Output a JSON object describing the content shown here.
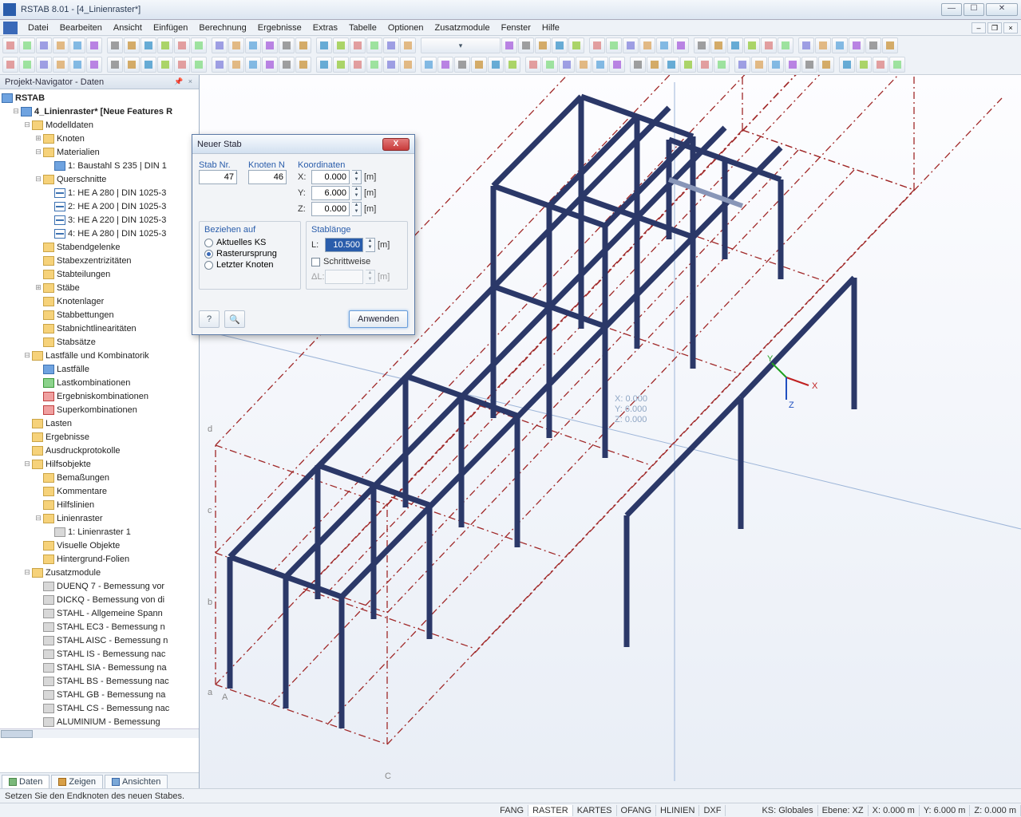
{
  "window": {
    "title": "RSTAB 8.01 - [4_Linienraster*]"
  },
  "menu": [
    "Datei",
    "Bearbeiten",
    "Ansicht",
    "Einfügen",
    "Berechnung",
    "Ergebnisse",
    "Extras",
    "Tabelle",
    "Optionen",
    "Zusatzmodule",
    "Fenster",
    "Hilfe"
  ],
  "sidebar": {
    "title": "Projekt-Navigator - Daten",
    "root": "RSTAB",
    "project": "4_Linienraster* [Neue Features R",
    "nodes": [
      {
        "d": 1,
        "t": "-",
        "i": "yellow",
        "l": "Modelldaten"
      },
      {
        "d": 2,
        "t": "+",
        "i": "yellow",
        "l": "Knoten"
      },
      {
        "d": 2,
        "t": "-",
        "i": "yellow",
        "l": "Materialien"
      },
      {
        "d": 3,
        "t": "",
        "i": "blue",
        "l": "1: Baustahl S 235 | DIN 1"
      },
      {
        "d": 2,
        "t": "-",
        "i": "yellow",
        "l": "Querschnitte"
      },
      {
        "d": 3,
        "t": "",
        "i": "beam",
        "l": "1: HE A 280 | DIN 1025-3"
      },
      {
        "d": 3,
        "t": "",
        "i": "beam",
        "l": "2: HE A 200 | DIN 1025-3"
      },
      {
        "d": 3,
        "t": "",
        "i": "beam",
        "l": "3: HE A 220 | DIN 1025-3"
      },
      {
        "d": 3,
        "t": "",
        "i": "beam",
        "l": "4: HE A 280 | DIN 1025-3"
      },
      {
        "d": 2,
        "t": "",
        "i": "yellow",
        "l": "Stabendgelenke"
      },
      {
        "d": 2,
        "t": "",
        "i": "yellow",
        "l": "Stabexzentrizitäten"
      },
      {
        "d": 2,
        "t": "",
        "i": "yellow",
        "l": "Stabteilungen"
      },
      {
        "d": 2,
        "t": "+",
        "i": "yellow",
        "l": "Stäbe"
      },
      {
        "d": 2,
        "t": "",
        "i": "yellow",
        "l": "Knotenlager"
      },
      {
        "d": 2,
        "t": "",
        "i": "yellow",
        "l": "Stabbettungen"
      },
      {
        "d": 2,
        "t": "",
        "i": "yellow",
        "l": "Stabnichtlinearitäten"
      },
      {
        "d": 2,
        "t": "",
        "i": "yellow",
        "l": "Stabsätze"
      },
      {
        "d": 1,
        "t": "-",
        "i": "yellow",
        "l": "Lastfälle und Kombinatorik"
      },
      {
        "d": 2,
        "t": "",
        "i": "blue",
        "l": "Lastfälle"
      },
      {
        "d": 2,
        "t": "",
        "i": "green",
        "l": "Lastkombinationen"
      },
      {
        "d": 2,
        "t": "",
        "i": "red",
        "l": "Ergebniskombinationen"
      },
      {
        "d": 2,
        "t": "",
        "i": "red",
        "l": "Superkombinationen"
      },
      {
        "d": 1,
        "t": "",
        "i": "yellow",
        "l": "Lasten"
      },
      {
        "d": 1,
        "t": "",
        "i": "yellow",
        "l": "Ergebnisse"
      },
      {
        "d": 1,
        "t": "",
        "i": "yellow",
        "l": "Ausdruckprotokolle"
      },
      {
        "d": 1,
        "t": "-",
        "i": "yellow",
        "l": "Hilfsobjekte"
      },
      {
        "d": 2,
        "t": "",
        "i": "yellow",
        "l": "Bemaßungen"
      },
      {
        "d": 2,
        "t": "",
        "i": "yellow",
        "l": "Kommentare"
      },
      {
        "d": 2,
        "t": "",
        "i": "yellow",
        "l": "Hilfslinien"
      },
      {
        "d": 2,
        "t": "-",
        "i": "yellow",
        "l": "Linienraster"
      },
      {
        "d": 3,
        "t": "",
        "i": "grey",
        "l": "1: Linienraster 1"
      },
      {
        "d": 2,
        "t": "",
        "i": "yellow",
        "l": "Visuelle Objekte"
      },
      {
        "d": 2,
        "t": "",
        "i": "yellow",
        "l": "Hintergrund-Folien"
      },
      {
        "d": 1,
        "t": "-",
        "i": "yellow",
        "l": "Zusatzmodule"
      },
      {
        "d": 2,
        "t": "",
        "i": "grey",
        "l": "DUENQ 7 - Bemessung vor"
      },
      {
        "d": 2,
        "t": "",
        "i": "grey",
        "l": "DICKQ - Bemessung von di"
      },
      {
        "d": 2,
        "t": "",
        "i": "grey",
        "l": "STAHL - Allgemeine Spann"
      },
      {
        "d": 2,
        "t": "",
        "i": "grey",
        "l": "STAHL EC3 - Bemessung n"
      },
      {
        "d": 2,
        "t": "",
        "i": "grey",
        "l": "STAHL AISC - Bemessung n"
      },
      {
        "d": 2,
        "t": "",
        "i": "grey",
        "l": "STAHL IS - Bemessung nac"
      },
      {
        "d": 2,
        "t": "",
        "i": "grey",
        "l": "STAHL SIA - Bemessung na"
      },
      {
        "d": 2,
        "t": "",
        "i": "grey",
        "l": "STAHL BS - Bemessung nac"
      },
      {
        "d": 2,
        "t": "",
        "i": "grey",
        "l": "STAHL GB - Bemessung na"
      },
      {
        "d": 2,
        "t": "",
        "i": "grey",
        "l": "STAHL CS - Bemessung nac"
      },
      {
        "d": 2,
        "t": "",
        "i": "grey",
        "l": "ALUMINIUM - Bemessung"
      }
    ],
    "tabs": [
      "Daten",
      "Zeigen",
      "Ansichten"
    ]
  },
  "dialog": {
    "title": "Neuer Stab",
    "stab_nr_label": "Stab Nr.",
    "stab_nr": "47",
    "knoten_label": "Knoten N",
    "knoten": "46",
    "koord_label": "Koordinaten",
    "x_label": "X:",
    "x": "0.000",
    "y_label": "Y:",
    "y": "6.000",
    "z_label": "Z:",
    "z": "0.000",
    "unit": "[m]",
    "beziehen_label": "Beziehen auf",
    "opt1": "Aktuelles KS",
    "opt2": "Rasterursprung",
    "opt3": "Letzter Knoten",
    "stablange_label": "Stablänge",
    "l_label": "L:",
    "l": "10.500",
    "schritt_label": "Schrittweise",
    "dl_label": "ΔL:",
    "apply": "Anwenden"
  },
  "coords_overlay": {
    "x": "X:  0.000",
    "y": "Y:  6.000",
    "z": "Z:  0.000"
  },
  "status1": "Setzen Sie den Endknoten des neuen Stabes.",
  "status2": {
    "snaps": [
      "FANG",
      "RASTER",
      "KARTES",
      "OFANG",
      "HLINIEN",
      "DXF"
    ],
    "ks": "KS: Globales",
    "ebene": "Ebene: XZ",
    "x": "X: 0.000 m",
    "y": "Y: 6.000 m",
    "z": "Z: 0.000 m"
  },
  "colors": {
    "beam": "#2b3868",
    "grid": "#a02828",
    "bg": "#f4f7fc",
    "accent": "#2a5dab"
  }
}
